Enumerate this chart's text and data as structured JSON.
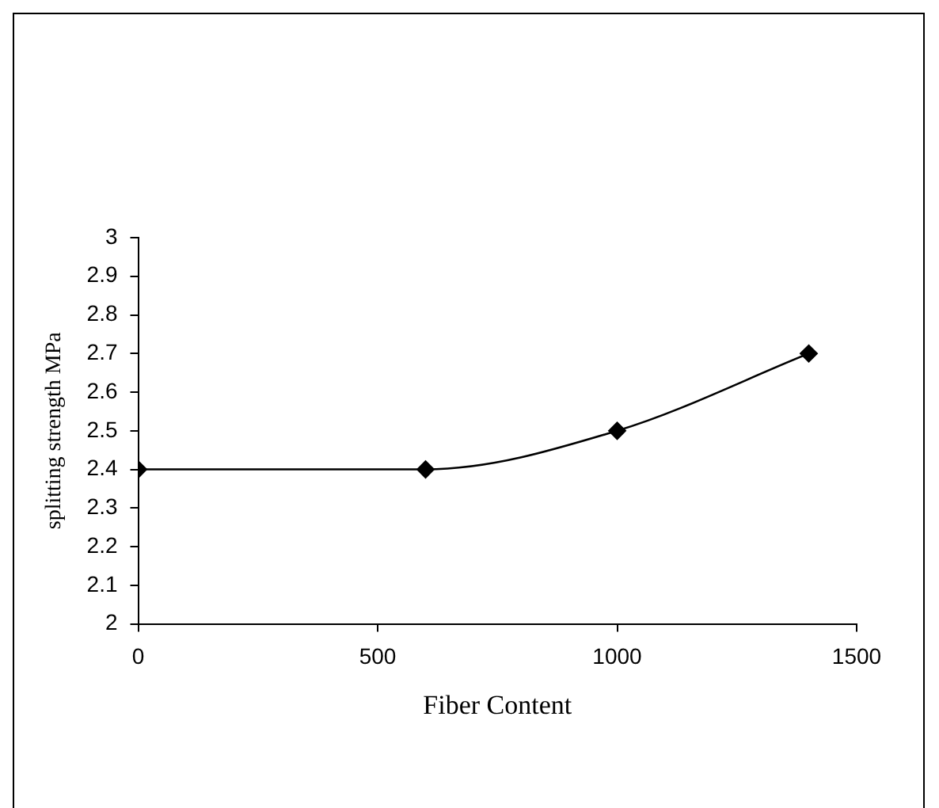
{
  "chart_data": {
    "type": "line",
    "xlabel": "Fiber Content",
    "ylabel": "splitting strength MPa",
    "x": [
      0,
      600,
      1000,
      1400
    ],
    "series": [
      {
        "color": "#000000",
        "values": [
          2.4,
          2.4,
          2.5,
          2.7
        ]
      }
    ],
    "xlim": [
      0,
      1500
    ],
    "xticks": [
      0,
      500,
      1000,
      1500
    ],
    "ylim": [
      2,
      3
    ],
    "yticks": [
      2,
      2.1,
      2.2,
      2.3,
      2.4,
      2.5,
      2.6,
      2.7,
      2.8,
      2.9,
      3
    ],
    "grid": false,
    "legend": false,
    "marker": "diamond",
    "line_style": "solid"
  }
}
